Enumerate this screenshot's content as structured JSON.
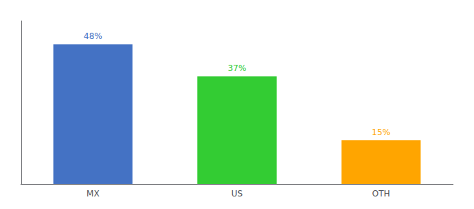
{
  "chart_data": {
    "type": "bar",
    "categories": [
      "MX",
      "US",
      "OTH"
    ],
    "values": [
      48,
      37,
      15
    ],
    "value_labels": [
      "48%",
      "37%",
      "15%"
    ],
    "colors": [
      "#4472C4",
      "#33CC33",
      "#FFA500"
    ],
    "ylim": [
      0,
      56
    ],
    "grid": false,
    "data_labels": true,
    "tick_labels": "x"
  }
}
